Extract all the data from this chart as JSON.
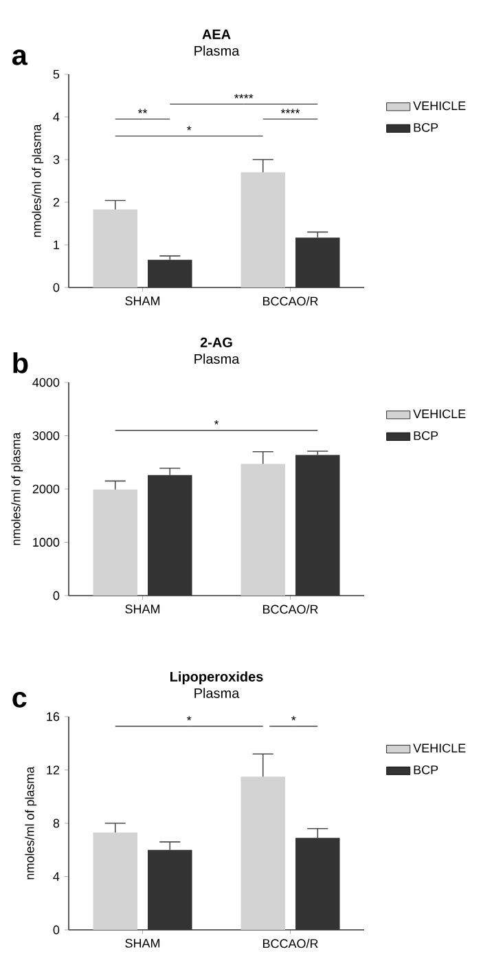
{
  "chart_data": [
    {
      "type": "bar",
      "title": "AEA",
      "subtitle": "Plasma",
      "ylabel": "nmoles/ml of plasma",
      "categories": [
        "SHAM",
        "BCCAO/R"
      ],
      "series": [
        {
          "name": "VEHICLE",
          "color": "#d3d3d3",
          "values": [
            1.83,
            2.7
          ],
          "errors": [
            0.21,
            0.3
          ]
        },
        {
          "name": "BCP",
          "color": "#333333",
          "values": [
            0.65,
            1.17
          ],
          "errors": [
            0.09,
            0.13
          ]
        }
      ],
      "ylim": [
        0,
        5
      ],
      "yticks": [
        0,
        1,
        2,
        3,
        4,
        5
      ],
      "legend": "right",
      "annotations": [
        "a",
        "**",
        "*",
        "****",
        "****"
      ]
    },
    {
      "type": "bar",
      "title": "2-AG",
      "subtitle": "Plasma",
      "ylabel": "nmoles/ml of plasma",
      "categories": [
        "SHAM",
        "BCCAO/R"
      ],
      "series": [
        {
          "name": "VEHICLE",
          "color": "#d3d3d3",
          "values": [
            1990,
            2470
          ],
          "errors": [
            160,
            230
          ]
        },
        {
          "name": "BCP",
          "color": "#333333",
          "values": [
            2260,
            2640
          ],
          "errors": [
            130,
            70
          ]
        }
      ],
      "ylim": [
        0,
        4000
      ],
      "yticks": [
        0,
        1000,
        2000,
        3000,
        4000
      ],
      "legend": "right",
      "annotations": [
        "b",
        "*"
      ]
    },
    {
      "type": "bar",
      "title": "Lipoperoxides",
      "subtitle": "Plasma",
      "ylabel": "nmoles/ml of plasma",
      "categories": [
        "SHAM",
        "BCCAO/R"
      ],
      "series": [
        {
          "name": "VEHICLE",
          "color": "#d3d3d3",
          "values": [
            7.3,
            11.5
          ],
          "errors": [
            0.7,
            1.7
          ]
        },
        {
          "name": "BCP",
          "color": "#333333",
          "values": [
            6.0,
            6.9
          ],
          "errors": [
            0.6,
            0.7
          ]
        }
      ],
      "ylim": [
        0,
        16
      ],
      "yticks": [
        0,
        4,
        8,
        12,
        16
      ],
      "legend": "right",
      "annotations": [
        "c",
        "*",
        "*"
      ]
    }
  ]
}
